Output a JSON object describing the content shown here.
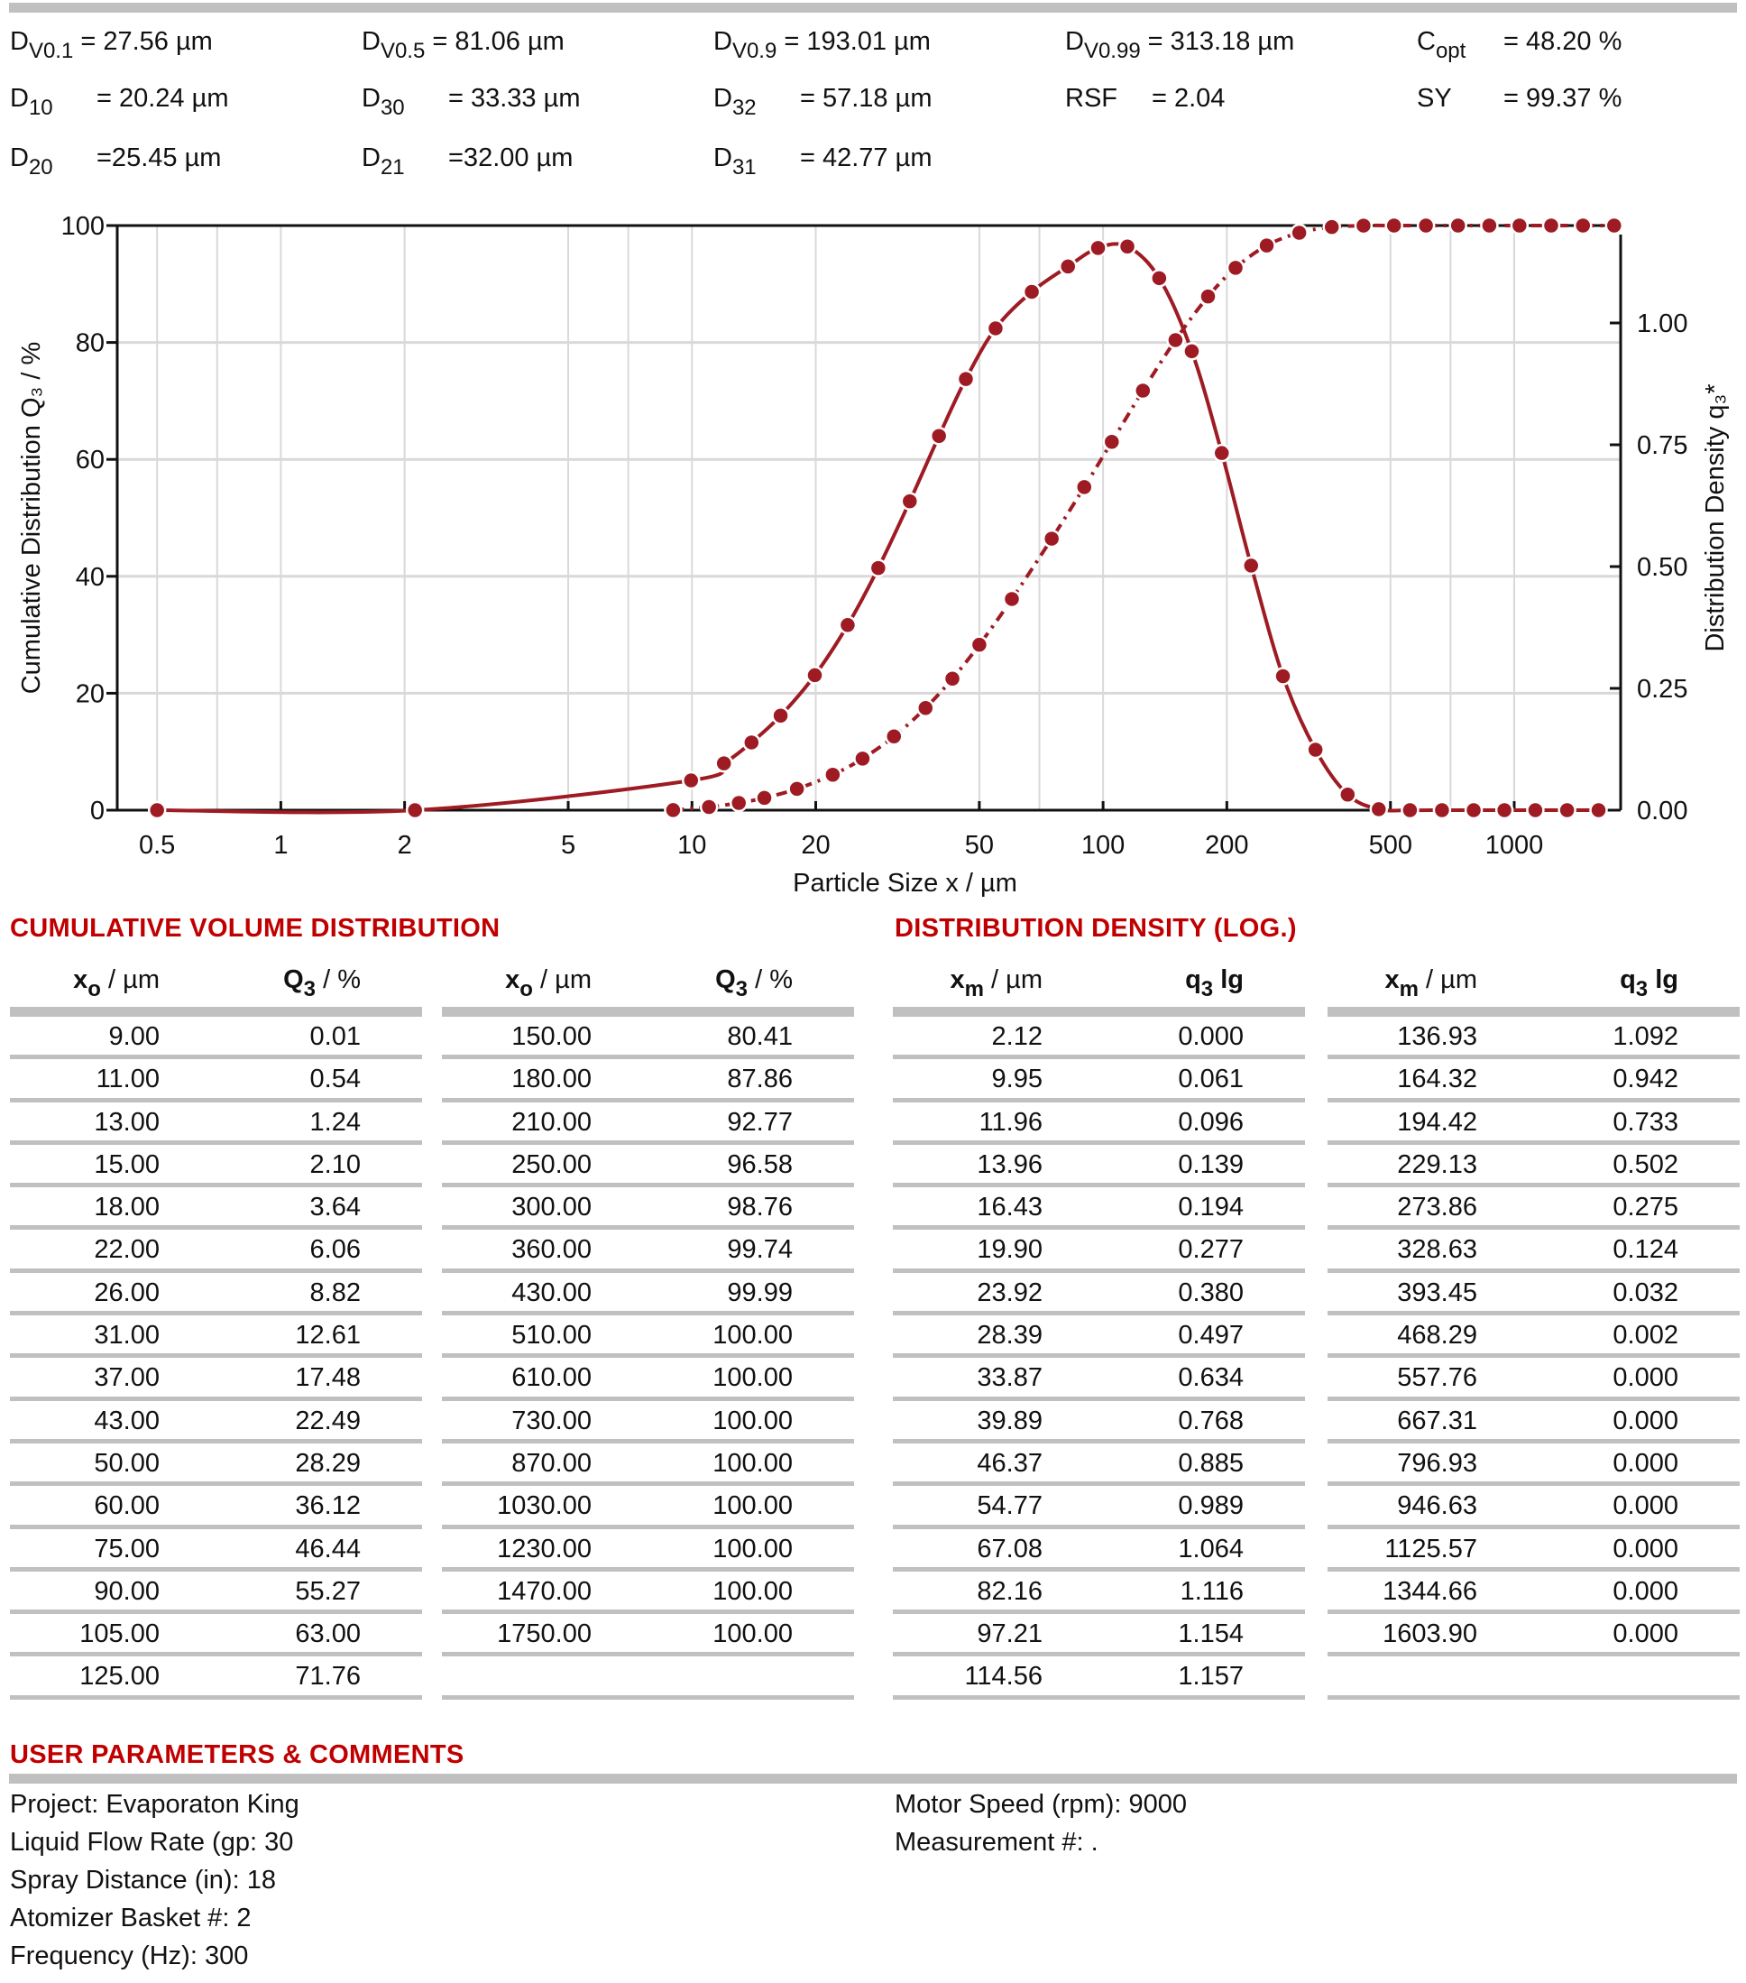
{
  "colors": {
    "series": "#9e1b24",
    "section_title": "#c00000",
    "rule": "#c0c0c0",
    "grid": "#d9d9d9"
  },
  "stats": [
    {
      "sym": "D",
      "sub": "V0.1",
      "value": "= 27.56 µm"
    },
    {
      "sym": "D",
      "sub": "V0.5",
      "value": "= 81.06 µm"
    },
    {
      "sym": "D",
      "sub": "V0.9",
      "value": "= 193.01 µm"
    },
    {
      "sym": "D",
      "sub": "V0.99",
      "value": "= 313.18 µm"
    },
    {
      "sym": "C",
      "sub": "opt",
      "value": "= 48.20 %"
    },
    {
      "sym": "D",
      "sub": "10",
      "value": "= 20.24 µm"
    },
    {
      "sym": "D",
      "sub": "30",
      "value": "= 33.33 µm"
    },
    {
      "sym": "D",
      "sub": "32",
      "value": "= 57.18 µm"
    },
    {
      "sym": "RSF",
      "sub": "",
      "value": "= 2.04"
    },
    {
      "sym": "SY",
      "sub": "",
      "value": "= 99.37 %"
    },
    {
      "sym": "D",
      "sub": "20",
      "value": "=25.45 µm"
    },
    {
      "sym": "D",
      "sub": "21",
      "value": "=32.00 µm"
    },
    {
      "sym": "D",
      "sub": "31",
      "value": "= 42.77 µm"
    }
  ],
  "chart_data": {
    "type": "line",
    "xscale": "log",
    "xlabel": "Particle Size x / µm",
    "ylabel": "Cumulative Distribution Q₃ / %",
    "y2label": "Distribution Density q₃*",
    "xlim": [
      0.4,
      1815
    ],
    "ylim": [
      0,
      100
    ],
    "y2lim": [
      0,
      1.2
    ],
    "xticks": [
      0.5,
      1,
      2,
      5,
      10,
      20,
      50,
      100,
      200,
      500,
      1000
    ],
    "xtick_labels": [
      "0.5",
      "1",
      "2",
      "5",
      "10",
      "20",
      "50",
      "100",
      "200",
      "500",
      "1000"
    ],
    "xgrid": [
      0.5,
      0.7,
      1,
      2,
      5,
      7,
      10,
      20,
      50,
      70,
      100,
      200,
      500,
      700,
      1000
    ],
    "yticks": [
      0,
      20,
      40,
      60,
      80,
      100
    ],
    "ytick_labels": [
      "0",
      "20",
      "40",
      "60",
      "80",
      "100"
    ],
    "y2ticks": [
      0,
      0.25,
      0.5,
      0.75,
      1.0
    ],
    "y2tick_labels": [
      "0.00",
      "0.25",
      "0.50",
      "0.75",
      "1.00"
    ],
    "grid": true,
    "series": [
      {
        "axis": "left",
        "style": "dash-dot",
        "x": [
          9,
          11,
          13,
          15,
          18,
          22,
          26,
          31,
          37,
          43,
          50,
          60,
          75,
          90,
          105,
          125,
          150,
          180,
          210,
          250,
          300,
          360,
          430,
          510,
          610,
          730,
          870,
          1030,
          1230,
          1470,
          1750
        ],
        "y": [
          0.01,
          0.54,
          1.24,
          2.1,
          3.64,
          6.06,
          8.82,
          12.61,
          17.48,
          22.49,
          28.29,
          36.12,
          46.44,
          55.27,
          63.0,
          71.76,
          80.41,
          87.86,
          92.77,
          96.58,
          98.76,
          99.74,
          99.99,
          100,
          100,
          100,
          100,
          100,
          100,
          100,
          100
        ]
      },
      {
        "axis": "right",
        "style": "solid",
        "x": [
          0.5,
          2.12,
          9.95,
          11.96,
          13.96,
          16.43,
          19.9,
          23.92,
          28.39,
          33.87,
          39.89,
          46.37,
          54.77,
          67.08,
          82.16,
          97.21,
          114.56,
          136.93,
          164.32,
          194.42,
          229.13,
          273.86,
          328.63,
          393.45,
          468.29,
          557.76,
          667.31,
          796.93,
          946.63,
          1125.57,
          1344.66,
          1603.9
        ],
        "y": [
          0,
          0.0,
          0.061,
          0.096,
          0.139,
          0.194,
          0.277,
          0.38,
          0.497,
          0.634,
          0.768,
          0.885,
          0.989,
          1.064,
          1.116,
          1.154,
          1.157,
          1.092,
          0.942,
          0.733,
          0.502,
          0.275,
          0.124,
          0.032,
          0.002,
          0,
          0,
          0,
          0,
          0,
          0,
          0
        ]
      }
    ]
  },
  "cumulative": {
    "title": "CUMULATIVE VOLUME DISTRIBUTION",
    "headers": [
      {
        "sym": "x",
        "sub": "o",
        "unit": " / µm"
      },
      {
        "sym": "Q",
        "sub": "3",
        "unit": " / %"
      }
    ],
    "rows": [
      [
        "9.00",
        "0.01"
      ],
      [
        "11.00",
        "0.54"
      ],
      [
        "13.00",
        "1.24"
      ],
      [
        "15.00",
        "2.10"
      ],
      [
        "18.00",
        "3.64"
      ],
      [
        "22.00",
        "6.06"
      ],
      [
        "26.00",
        "8.82"
      ],
      [
        "31.00",
        "12.61"
      ],
      [
        "37.00",
        "17.48"
      ],
      [
        "43.00",
        "22.49"
      ],
      [
        "50.00",
        "28.29"
      ],
      [
        "60.00",
        "36.12"
      ],
      [
        "75.00",
        "46.44"
      ],
      [
        "90.00",
        "55.27"
      ],
      [
        "105.00",
        "63.00"
      ],
      [
        "125.00",
        "71.76"
      ],
      [
        "150.00",
        "80.41"
      ],
      [
        "180.00",
        "87.86"
      ],
      [
        "210.00",
        "92.77"
      ],
      [
        "250.00",
        "96.58"
      ],
      [
        "300.00",
        "98.76"
      ],
      [
        "360.00",
        "99.74"
      ],
      [
        "430.00",
        "99.99"
      ],
      [
        "510.00",
        "100.00"
      ],
      [
        "610.00",
        "100.00"
      ],
      [
        "730.00",
        "100.00"
      ],
      [
        "870.00",
        "100.00"
      ],
      [
        "1030.00",
        "100.00"
      ],
      [
        "1230.00",
        "100.00"
      ],
      [
        "1470.00",
        "100.00"
      ],
      [
        "1750.00",
        "100.00"
      ]
    ]
  },
  "density": {
    "title": "DISTRIBUTION DENSITY (LOG.)",
    "headers": [
      {
        "sym": "x",
        "sub": "m",
        "unit": " / µm"
      },
      {
        "sym": "q",
        "sub": "3",
        "unit": " lg"
      }
    ],
    "rows": [
      [
        "2.12",
        "0.000"
      ],
      [
        "9.95",
        "0.061"
      ],
      [
        "11.96",
        "0.096"
      ],
      [
        "13.96",
        "0.139"
      ],
      [
        "16.43",
        "0.194"
      ],
      [
        "19.90",
        "0.277"
      ],
      [
        "23.92",
        "0.380"
      ],
      [
        "28.39",
        "0.497"
      ],
      [
        "33.87",
        "0.634"
      ],
      [
        "39.89",
        "0.768"
      ],
      [
        "46.37",
        "0.885"
      ],
      [
        "54.77",
        "0.989"
      ],
      [
        "67.08",
        "1.064"
      ],
      [
        "82.16",
        "1.116"
      ],
      [
        "97.21",
        "1.154"
      ],
      [
        "114.56",
        "1.157"
      ],
      [
        "136.93",
        "1.092"
      ],
      [
        "164.32",
        "0.942"
      ],
      [
        "194.42",
        "0.733"
      ],
      [
        "229.13",
        "0.502"
      ],
      [
        "273.86",
        "0.275"
      ],
      [
        "328.63",
        "0.124"
      ],
      [
        "393.45",
        "0.032"
      ],
      [
        "468.29",
        "0.002"
      ],
      [
        "557.76",
        "0.000"
      ],
      [
        "667.31",
        "0.000"
      ],
      [
        "796.93",
        "0.000"
      ],
      [
        "946.63",
        "0.000"
      ],
      [
        "1125.57",
        "0.000"
      ],
      [
        "1344.66",
        "0.000"
      ],
      [
        "1603.90",
        "0.000"
      ]
    ]
  },
  "params": {
    "title": "USER PARAMETERS & COMMENTS",
    "left": [
      "Project: Evaporaton King",
      "Liquid Flow Rate (gp: 30",
      "Spray Distance (in): 18",
      "Atomizer Basket #: 2",
      "Frequency (Hz): 300"
    ],
    "right": [
      "Motor Speed (rpm): 9000",
      "Measurement #: ."
    ]
  }
}
